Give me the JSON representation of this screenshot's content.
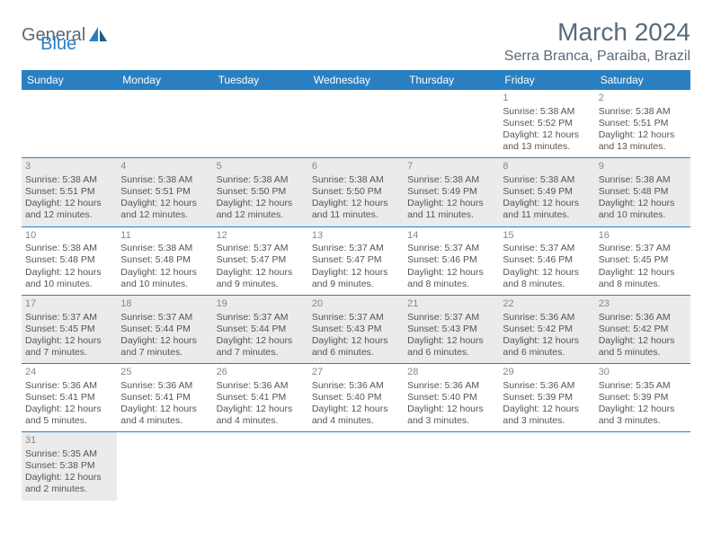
{
  "logo": {
    "text1": "General",
    "text2": "Blue"
  },
  "title": "March 2024",
  "location": "Serra Branca, Paraiba, Brazil",
  "colors": {
    "headerBg": "#2a7fc0",
    "headerText": "#ffffff",
    "shadedBg": "#ebebeb",
    "borderColor": "#2a7fc0",
    "logoGray": "#5a6a78",
    "logoBlue": "#2a7fc0",
    "bodyText": "#555555"
  },
  "weekdays": [
    "Sunday",
    "Monday",
    "Tuesday",
    "Wednesday",
    "Thursday",
    "Friday",
    "Saturday"
  ],
  "startWeekday": 5,
  "daysInMonth": 31,
  "days": {
    "1": {
      "sunrise": "5:38 AM",
      "sunset": "5:52 PM",
      "daylight": "12 hours and 13 minutes."
    },
    "2": {
      "sunrise": "5:38 AM",
      "sunset": "5:51 PM",
      "daylight": "12 hours and 13 minutes."
    },
    "3": {
      "sunrise": "5:38 AM",
      "sunset": "5:51 PM",
      "daylight": "12 hours and 12 minutes."
    },
    "4": {
      "sunrise": "5:38 AM",
      "sunset": "5:51 PM",
      "daylight": "12 hours and 12 minutes."
    },
    "5": {
      "sunrise": "5:38 AM",
      "sunset": "5:50 PM",
      "daylight": "12 hours and 12 minutes."
    },
    "6": {
      "sunrise": "5:38 AM",
      "sunset": "5:50 PM",
      "daylight": "12 hours and 11 minutes."
    },
    "7": {
      "sunrise": "5:38 AM",
      "sunset": "5:49 PM",
      "daylight": "12 hours and 11 minutes."
    },
    "8": {
      "sunrise": "5:38 AM",
      "sunset": "5:49 PM",
      "daylight": "12 hours and 11 minutes."
    },
    "9": {
      "sunrise": "5:38 AM",
      "sunset": "5:48 PM",
      "daylight": "12 hours and 10 minutes."
    },
    "10": {
      "sunrise": "5:38 AM",
      "sunset": "5:48 PM",
      "daylight": "12 hours and 10 minutes."
    },
    "11": {
      "sunrise": "5:38 AM",
      "sunset": "5:48 PM",
      "daylight": "12 hours and 10 minutes."
    },
    "12": {
      "sunrise": "5:37 AM",
      "sunset": "5:47 PM",
      "daylight": "12 hours and 9 minutes."
    },
    "13": {
      "sunrise": "5:37 AM",
      "sunset": "5:47 PM",
      "daylight": "12 hours and 9 minutes."
    },
    "14": {
      "sunrise": "5:37 AM",
      "sunset": "5:46 PM",
      "daylight": "12 hours and 8 minutes."
    },
    "15": {
      "sunrise": "5:37 AM",
      "sunset": "5:46 PM",
      "daylight": "12 hours and 8 minutes."
    },
    "16": {
      "sunrise": "5:37 AM",
      "sunset": "5:45 PM",
      "daylight": "12 hours and 8 minutes."
    },
    "17": {
      "sunrise": "5:37 AM",
      "sunset": "5:45 PM",
      "daylight": "12 hours and 7 minutes."
    },
    "18": {
      "sunrise": "5:37 AM",
      "sunset": "5:44 PM",
      "daylight": "12 hours and 7 minutes."
    },
    "19": {
      "sunrise": "5:37 AM",
      "sunset": "5:44 PM",
      "daylight": "12 hours and 7 minutes."
    },
    "20": {
      "sunrise": "5:37 AM",
      "sunset": "5:43 PM",
      "daylight": "12 hours and 6 minutes."
    },
    "21": {
      "sunrise": "5:37 AM",
      "sunset": "5:43 PM",
      "daylight": "12 hours and 6 minutes."
    },
    "22": {
      "sunrise": "5:36 AM",
      "sunset": "5:42 PM",
      "daylight": "12 hours and 6 minutes."
    },
    "23": {
      "sunrise": "5:36 AM",
      "sunset": "5:42 PM",
      "daylight": "12 hours and 5 minutes."
    },
    "24": {
      "sunrise": "5:36 AM",
      "sunset": "5:41 PM",
      "daylight": "12 hours and 5 minutes."
    },
    "25": {
      "sunrise": "5:36 AM",
      "sunset": "5:41 PM",
      "daylight": "12 hours and 4 minutes."
    },
    "26": {
      "sunrise": "5:36 AM",
      "sunset": "5:41 PM",
      "daylight": "12 hours and 4 minutes."
    },
    "27": {
      "sunrise": "5:36 AM",
      "sunset": "5:40 PM",
      "daylight": "12 hours and 4 minutes."
    },
    "28": {
      "sunrise": "5:36 AM",
      "sunset": "5:40 PM",
      "daylight": "12 hours and 3 minutes."
    },
    "29": {
      "sunrise": "5:36 AM",
      "sunset": "5:39 PM",
      "daylight": "12 hours and 3 minutes."
    },
    "30": {
      "sunrise": "5:35 AM",
      "sunset": "5:39 PM",
      "daylight": "12 hours and 3 minutes."
    },
    "31": {
      "sunrise": "5:35 AM",
      "sunset": "5:38 PM",
      "daylight": "12 hours and 2 minutes."
    }
  },
  "labels": {
    "sunrise": "Sunrise: ",
    "sunset": "Sunset: ",
    "daylight": "Daylight: "
  }
}
